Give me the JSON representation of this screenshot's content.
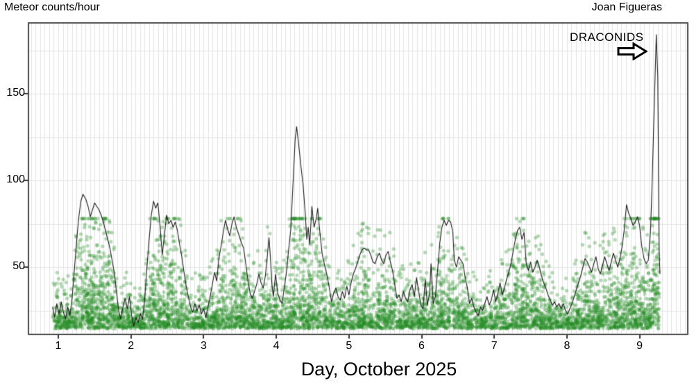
{
  "header": {
    "left_label": "Meteor counts/hour",
    "right_label": "Joan Figueras"
  },
  "annotation": {
    "text": "DRACONIDS",
    "arrow_icon": "block-right-arrow",
    "points_to": "peak at day 9.23"
  },
  "axes": {
    "x": {
      "title": "Day, October 2025",
      "ticks": [
        1,
        2,
        3,
        4,
        5,
        6,
        7,
        8,
        9
      ],
      "range": [
        0.59,
        9.66
      ],
      "minor_grid_step_days": 0.0625
    },
    "y": {
      "units_label": "Meteor counts/hour",
      "ticks": [
        50,
        100,
        150
      ],
      "range": [
        11,
        191
      ],
      "grid_step": 25
    }
  },
  "colors": {
    "background": "#ffffff",
    "grid": "#e4e4e4",
    "border": "#4a4a4a",
    "line": "#1b1b1b",
    "scatter": "#228B22",
    "text": "#000000"
  },
  "chart_data": {
    "type": "line+scatter",
    "title": "",
    "xlabel": "Day, October 2025",
    "ylabel": "Meteor counts/hour",
    "xlim": [
      0.59,
      9.66
    ],
    "ylim": [
      11,
      191
    ],
    "grid": "minor vertical every 1/16 day, horizontal every 25 counts",
    "legend": "none",
    "annotation_peak": {
      "label": "DRACONIDS",
      "day": 9.23,
      "value": 184
    },
    "series": [
      {
        "name": "hourly meteor rate (line)",
        "type": "line",
        "points": [
          [
            0.92,
            27
          ],
          [
            0.95,
            21
          ],
          [
            0.98,
            29
          ],
          [
            1.01,
            23
          ],
          [
            1.04,
            30
          ],
          [
            1.07,
            24
          ],
          [
            1.1,
            20
          ],
          [
            1.13,
            27
          ],
          [
            1.16,
            22
          ],
          [
            1.19,
            32
          ],
          [
            1.22,
            48
          ],
          [
            1.25,
            64
          ],
          [
            1.28,
            78
          ],
          [
            1.31,
            88
          ],
          [
            1.34,
            92
          ],
          [
            1.38,
            89
          ],
          [
            1.41,
            85
          ],
          [
            1.44,
            79
          ],
          [
            1.47,
            83
          ],
          [
            1.5,
            87
          ],
          [
            1.53,
            85
          ],
          [
            1.56,
            83
          ],
          [
            1.59,
            80
          ],
          [
            1.62,
            76
          ],
          [
            1.65,
            71
          ],
          [
            1.68,
            66
          ],
          [
            1.71,
            61
          ],
          [
            1.74,
            54
          ],
          [
            1.77,
            47
          ],
          [
            1.8,
            36
          ],
          [
            1.83,
            25
          ],
          [
            1.86,
            20
          ],
          [
            1.89,
            27
          ],
          [
            1.92,
            32
          ],
          [
            1.95,
            26
          ],
          [
            1.98,
            33
          ],
          [
            2.01,
            22
          ],
          [
            2.04,
            16
          ],
          [
            2.07,
            21
          ],
          [
            2.1,
            18
          ],
          [
            2.13,
            23
          ],
          [
            2.16,
            20
          ],
          [
            2.19,
            32
          ],
          [
            2.22,
            50
          ],
          [
            2.25,
            66
          ],
          [
            2.28,
            80
          ],
          [
            2.31,
            88
          ],
          [
            2.34,
            84
          ],
          [
            2.37,
            87
          ],
          [
            2.4,
            74
          ],
          [
            2.43,
            57
          ],
          [
            2.46,
            68
          ],
          [
            2.49,
            80
          ],
          [
            2.52,
            75
          ],
          [
            2.55,
            77
          ],
          [
            2.58,
            73
          ],
          [
            2.61,
            76
          ],
          [
            2.64,
            71
          ],
          [
            2.67,
            63
          ],
          [
            2.7,
            56
          ],
          [
            2.73,
            47
          ],
          [
            2.76,
            39
          ],
          [
            2.79,
            33
          ],
          [
            2.82,
            27
          ],
          [
            2.85,
            24
          ],
          [
            2.88,
            29
          ],
          [
            2.91,
            25
          ],
          [
            2.94,
            28
          ],
          [
            2.97,
            23
          ],
          [
            3.0,
            26
          ],
          [
            3.03,
            21
          ],
          [
            3.06,
            27
          ],
          [
            3.09,
            33
          ],
          [
            3.12,
            40
          ],
          [
            3.15,
            47
          ],
          [
            3.18,
            42
          ],
          [
            3.21,
            55
          ],
          [
            3.24,
            62
          ],
          [
            3.27,
            70
          ],
          [
            3.3,
            77
          ],
          [
            3.33,
            72
          ],
          [
            3.36,
            68
          ],
          [
            3.39,
            75
          ],
          [
            3.42,
            79
          ],
          [
            3.45,
            73
          ],
          [
            3.49,
            68
          ],
          [
            3.52,
            64
          ],
          [
            3.55,
            61
          ],
          [
            3.58,
            52
          ],
          [
            3.61,
            42
          ],
          [
            3.64,
            35
          ],
          [
            3.67,
            32
          ],
          [
            3.7,
            36
          ],
          [
            3.73,
            40
          ],
          [
            3.76,
            46
          ],
          [
            3.79,
            41
          ],
          [
            3.82,
            38
          ],
          [
            3.85,
            45
          ],
          [
            3.88,
            58
          ],
          [
            3.9,
            67
          ],
          [
            3.92,
            55
          ],
          [
            3.94,
            40
          ],
          [
            3.96,
            33
          ],
          [
            3.99,
            46
          ],
          [
            4.02,
            35
          ],
          [
            4.05,
            31
          ],
          [
            4.08,
            29
          ],
          [
            4.11,
            38
          ],
          [
            4.14,
            47
          ],
          [
            4.17,
            60
          ],
          [
            4.2,
            72
          ],
          [
            4.23,
            98
          ],
          [
            4.26,
            124
          ],
          [
            4.28,
            131
          ],
          [
            4.31,
            120
          ],
          [
            4.34,
            108
          ],
          [
            4.37,
            97
          ],
          [
            4.4,
            80
          ],
          [
            4.42,
            66
          ],
          [
            4.44,
            73
          ],
          [
            4.46,
            63
          ],
          [
            4.49,
            85
          ],
          [
            4.52,
            73
          ],
          [
            4.55,
            78
          ],
          [
            4.57,
            84
          ],
          [
            4.6,
            70
          ],
          [
            4.63,
            58
          ],
          [
            4.66,
            52
          ],
          [
            4.7,
            45
          ],
          [
            4.73,
            38
          ],
          [
            4.76,
            30
          ],
          [
            4.79,
            35
          ],
          [
            4.82,
            38
          ],
          [
            4.85,
            33
          ],
          [
            4.88,
            31
          ],
          [
            4.91,
            36
          ],
          [
            4.94,
            32
          ],
          [
            4.97,
            39
          ],
          [
            5.0,
            34
          ],
          [
            5.03,
            41
          ],
          [
            5.06,
            46
          ],
          [
            5.09,
            49
          ],
          [
            5.12,
            53
          ],
          [
            5.15,
            57
          ],
          [
            5.18,
            60
          ],
          [
            5.21,
            61
          ],
          [
            5.24,
            60
          ],
          [
            5.27,
            60
          ],
          [
            5.3,
            57
          ],
          [
            5.33,
            53
          ],
          [
            5.36,
            52
          ],
          [
            5.39,
            56
          ],
          [
            5.42,
            58
          ],
          [
            5.45,
            54
          ],
          [
            5.48,
            52
          ],
          [
            5.51,
            57
          ],
          [
            5.54,
            59
          ],
          [
            5.57,
            53
          ],
          [
            5.6,
            48
          ],
          [
            5.63,
            40
          ],
          [
            5.66,
            32
          ],
          [
            5.69,
            34
          ],
          [
            5.72,
            30
          ],
          [
            5.75,
            36
          ],
          [
            5.78,
            32
          ],
          [
            5.81,
            30
          ],
          [
            5.84,
            37
          ],
          [
            5.87,
            40
          ],
          [
            5.9,
            33
          ],
          [
            5.93,
            44
          ],
          [
            5.96,
            36
          ],
          [
            5.99,
            28
          ],
          [
            6.02,
            26
          ],
          [
            6.05,
            43
          ],
          [
            6.08,
            28
          ],
          [
            6.11,
            35
          ],
          [
            6.13,
            52
          ],
          [
            6.16,
            29
          ],
          [
            6.19,
            33
          ],
          [
            6.22,
            48
          ],
          [
            6.25,
            64
          ],
          [
            6.28,
            73
          ],
          [
            6.31,
            77
          ],
          [
            6.34,
            74
          ],
          [
            6.37,
            77
          ],
          [
            6.4,
            76
          ],
          [
            6.43,
            70
          ],
          [
            6.45,
            54
          ],
          [
            6.48,
            50
          ],
          [
            6.51,
            56
          ],
          [
            6.54,
            54
          ],
          [
            6.57,
            52
          ],
          [
            6.6,
            44
          ],
          [
            6.63,
            38
          ],
          [
            6.66,
            29
          ],
          [
            6.69,
            32
          ],
          [
            6.72,
            27
          ],
          [
            6.75,
            24
          ],
          [
            6.78,
            22
          ],
          [
            6.81,
            27
          ],
          [
            6.84,
            25
          ],
          [
            6.87,
            29
          ],
          [
            6.9,
            33
          ],
          [
            6.93,
            28
          ],
          [
            6.96,
            31
          ],
          [
            6.99,
            37
          ],
          [
            7.02,
            30
          ],
          [
            7.05,
            35
          ],
          [
            7.08,
            41
          ],
          [
            7.11,
            34
          ],
          [
            7.14,
            38
          ],
          [
            7.17,
            43
          ],
          [
            7.2,
            47
          ],
          [
            7.23,
            52
          ],
          [
            7.26,
            59
          ],
          [
            7.29,
            66
          ],
          [
            7.32,
            71
          ],
          [
            7.35,
            73
          ],
          [
            7.38,
            66
          ],
          [
            7.41,
            70
          ],
          [
            7.44,
            52
          ],
          [
            7.47,
            48
          ],
          [
            7.5,
            53
          ],
          [
            7.53,
            47
          ],
          [
            7.56,
            50
          ],
          [
            7.59,
            54
          ],
          [
            7.62,
            50
          ],
          [
            7.65,
            45
          ],
          [
            7.68,
            41
          ],
          [
            7.71,
            38
          ],
          [
            7.74,
            34
          ],
          [
            7.77,
            31
          ],
          [
            7.8,
            28
          ],
          [
            7.83,
            30
          ],
          [
            7.86,
            27
          ],
          [
            7.89,
            29
          ],
          [
            7.92,
            26
          ],
          [
            7.95,
            29
          ],
          [
            7.98,
            25
          ],
          [
            8.01,
            23
          ],
          [
            8.04,
            26
          ],
          [
            8.07,
            29
          ],
          [
            8.1,
            33
          ],
          [
            8.13,
            37
          ],
          [
            8.16,
            41
          ],
          [
            8.19,
            45
          ],
          [
            8.22,
            50
          ],
          [
            8.25,
            55
          ],
          [
            8.28,
            53
          ],
          [
            8.31,
            50
          ],
          [
            8.34,
            47
          ],
          [
            8.37,
            52
          ],
          [
            8.4,
            56
          ],
          [
            8.43,
            49
          ],
          [
            8.46,
            46
          ],
          [
            8.49,
            51
          ],
          [
            8.52,
            56
          ],
          [
            8.55,
            52
          ],
          [
            8.58,
            48
          ],
          [
            8.61,
            53
          ],
          [
            8.64,
            58
          ],
          [
            8.67,
            54
          ],
          [
            8.7,
            50
          ],
          [
            8.73,
            55
          ],
          [
            8.76,
            62
          ],
          [
            8.79,
            72
          ],
          [
            8.82,
            86
          ],
          [
            8.85,
            81
          ],
          [
            8.88,
            78
          ],
          [
            8.91,
            74
          ],
          [
            8.94,
            76
          ],
          [
            8.97,
            79
          ],
          [
            9.0,
            74
          ],
          [
            9.03,
            62
          ],
          [
            9.06,
            55
          ],
          [
            9.09,
            52
          ],
          [
            9.12,
            54
          ],
          [
            9.15,
            70
          ],
          [
            9.17,
            95
          ],
          [
            9.19,
            125
          ],
          [
            9.21,
            155
          ],
          [
            9.23,
            184
          ],
          [
            9.25,
            160
          ],
          [
            9.26,
            110
          ],
          [
            9.27,
            60
          ],
          [
            9.28,
            46
          ]
        ]
      },
      {
        "name": "10-min meteor counts (scatter cloud)",
        "type": "scatter",
        "opacity": 0.33,
        "radius": 2.6,
        "reconstruction": {
          "seed": 1234,
          "attempts": 8200,
          "x_range": [
            0.92,
            9.27
          ],
          "y_floor": 14.5,
          "y_cap": 78,
          "note": "dense semi-transparent green cloud, values mostly 15-45, envelope rises with line peaks"
        }
      }
    ]
  }
}
